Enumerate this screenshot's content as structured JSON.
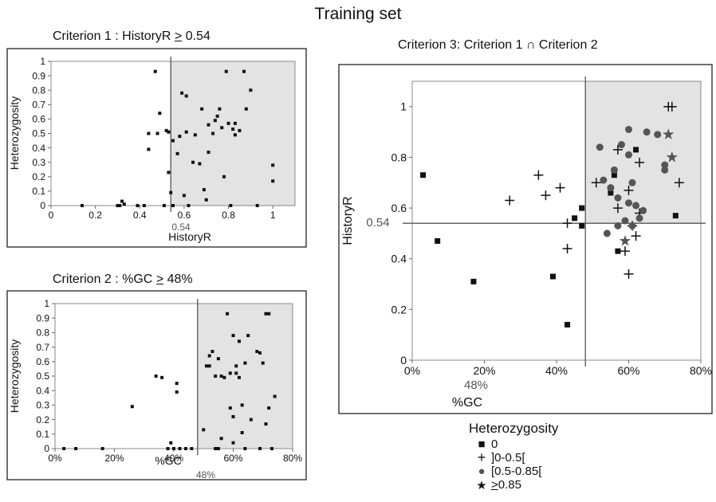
{
  "main_title": "Training set",
  "panel1": {
    "title_prefix": "Criterion 1 : HistoryR ",
    "title_op": ">",
    "title_suffix": " 0.54"
  },
  "panel2": {
    "title_prefix": "Criterion 2 : %GC ",
    "title_op": ">",
    "title_suffix": " 48%"
  },
  "panel3": {
    "title": "Criterion 3: Criterion 1 ∩ Criterion 2"
  },
  "legend": {
    "title": "Heterozygosity",
    "items": [
      {
        "symbol": "square",
        "label": "0"
      },
      {
        "symbol": "plus",
        "label": "]0-0.5["
      },
      {
        "symbol": "circle",
        "label": "[0.5-0.85["
      },
      {
        "symbol": "star",
        "label_op": ">",
        "label": " 0.85"
      }
    ]
  },
  "colors": {
    "shade": "#e3e3e3",
    "marker": "#111111",
    "circle": "#555555",
    "line": "#555555"
  },
  "chart_data": [
    {
      "type": "scatter",
      "title": "Criterion 1 : HistoryR > 0.54",
      "xlabel": "HistoryR",
      "ylabel": "Heterozygosity",
      "xlim": [
        0,
        1.1
      ],
      "ylim": [
        0,
        1
      ],
      "xticks": [
        0,
        0.2,
        0.4,
        0.6,
        0.8,
        1
      ],
      "xtick_labels": [
        "0",
        "0.2",
        "0.4",
        "0.6",
        "0.8",
        "1"
      ],
      "yticks": [
        0,
        0.1,
        0.2,
        0.3,
        0.4,
        0.5,
        0.6,
        0.7,
        0.8,
        0.9,
        1
      ],
      "ytick_labels": [
        "0",
        "0.1",
        "0.2",
        "0.3",
        "0.4",
        "0.5",
        "0.6",
        "0.7",
        "0.8",
        "0.9",
        "1"
      ],
      "threshold": {
        "axis": "x",
        "value": 0.54,
        "label": "0.54"
      },
      "shaded_region": "x >= 0.54",
      "grid": false,
      "points": [
        [
          0.14,
          0
        ],
        [
          0.3,
          0
        ],
        [
          0.31,
          0
        ],
        [
          0.32,
          0.03
        ],
        [
          0.33,
          0.01
        ],
        [
          0.39,
          0
        ],
        [
          0.42,
          0
        ],
        [
          0.44,
          0.5
        ],
        [
          0.44,
          0.39
        ],
        [
          0.47,
          0.93
        ],
        [
          0.48,
          0.5
        ],
        [
          0.49,
          0.64
        ],
        [
          0.51,
          0
        ],
        [
          0.52,
          0.52
        ],
        [
          0.53,
          0.51
        ],
        [
          0.53,
          0.23
        ],
        [
          0.54,
          0.09
        ],
        [
          0.55,
          0.45
        ],
        [
          0.55,
          0
        ],
        [
          0.57,
          0.36
        ],
        [
          0.58,
          0.48
        ],
        [
          0.59,
          0.78
        ],
        [
          0.6,
          0.07
        ],
        [
          0.61,
          0.76
        ],
        [
          0.61,
          0.51
        ],
        [
          0.62,
          0
        ],
        [
          0.64,
          0.3
        ],
        [
          0.65,
          0.49
        ],
        [
          0.67,
          0.29
        ],
        [
          0.68,
          0.67
        ],
        [
          0.69,
          0.11
        ],
        [
          0.7,
          0.04
        ],
        [
          0.71,
          0.56
        ],
        [
          0.71,
          0.37
        ],
        [
          0.73,
          0.5
        ],
        [
          0.74,
          0.59
        ],
        [
          0.75,
          0.62
        ],
        [
          0.76,
          0.67
        ],
        [
          0.77,
          0.54
        ],
        [
          0.78,
          0.2
        ],
        [
          0.79,
          0.93
        ],
        [
          0.8,
          0.57
        ],
        [
          0.81,
          0
        ],
        [
          0.82,
          0.53
        ],
        [
          0.83,
          0.57
        ],
        [
          0.83,
          0.49
        ],
        [
          0.85,
          0.52
        ],
        [
          0.87,
          0.93
        ],
        [
          0.88,
          0.67
        ],
        [
          0.9,
          0.8
        ],
        [
          0.93,
          0
        ],
        [
          1,
          0.28
        ],
        [
          1,
          0.17
        ]
      ]
    },
    {
      "type": "scatter",
      "title": "Criterion 2 : %GC > 48%",
      "xlabel": "%GC",
      "ylabel": "Heterozygosity",
      "xlim": [
        0,
        80
      ],
      "ylim": [
        0,
        1
      ],
      "xticks": [
        0,
        20,
        40,
        60,
        80
      ],
      "xtick_labels": [
        "0%",
        "20%",
        "40%",
        "60%",
        "80%"
      ],
      "yticks": [
        0,
        0.1,
        0.2,
        0.3,
        0.4,
        0.5,
        0.6,
        0.7,
        0.8,
        0.9,
        1
      ],
      "ytick_labels": [
        "0",
        "0.1",
        "0.2",
        "0.3",
        "0.4",
        "0.5",
        "0.6",
        "0.7",
        "0.8",
        "0.9",
        "1"
      ],
      "threshold": {
        "axis": "x",
        "value": 48,
        "label": "48%"
      },
      "shaded_region": "x >= 48",
      "grid": false,
      "points": [
        [
          3,
          0
        ],
        [
          7,
          0
        ],
        [
          16,
          0
        ],
        [
          26,
          0.29
        ],
        [
          34,
          0.5
        ],
        [
          36,
          0.49
        ],
        [
          38,
          0
        ],
        [
          39,
          0.04
        ],
        [
          40,
          0
        ],
        [
          41,
          0.45
        ],
        [
          41,
          0.39
        ],
        [
          42,
          0
        ],
        [
          44,
          0
        ],
        [
          46,
          0
        ],
        [
          50,
          0.13
        ],
        [
          51,
          0.57
        ],
        [
          52,
          0.64
        ],
        [
          52,
          0.57
        ],
        [
          53,
          0.67
        ],
        [
          54,
          0.5
        ],
        [
          54,
          0
        ],
        [
          55,
          0.62
        ],
        [
          55,
          0
        ],
        [
          56,
          0.5
        ],
        [
          56,
          0.07
        ],
        [
          57,
          0.49
        ],
        [
          58,
          0.93
        ],
        [
          59,
          0.28
        ],
        [
          59,
          0.52
        ],
        [
          60,
          0.78
        ],
        [
          60,
          0.22
        ],
        [
          60,
          0.04
        ],
        [
          61,
          0.57
        ],
        [
          61,
          0.52
        ],
        [
          62,
          0.74
        ],
        [
          62,
          0.49
        ],
        [
          63,
          0.3
        ],
        [
          63,
          0.11
        ],
        [
          64,
          0.59
        ],
        [
          64,
          0
        ],
        [
          65,
          0.78
        ],
        [
          66,
          0.2
        ],
        [
          68,
          0.67
        ],
        [
          69,
          0.66
        ],
        [
          69,
          0
        ],
        [
          70,
          0.59
        ],
        [
          71,
          0.17
        ],
        [
          71,
          0.93
        ],
        [
          72,
          0.93
        ],
        [
          72,
          0.28
        ],
        [
          73,
          0
        ],
        [
          74,
          0.36
        ]
      ]
    },
    {
      "type": "scatter",
      "title": "Criterion 3: Criterion 1 ∩ Criterion 2",
      "xlabel": "%GC",
      "ylabel": "HistoryR",
      "xlim": [
        0,
        80
      ],
      "ylim": [
        0,
        1.1
      ],
      "xticks": [
        0,
        20,
        40,
        60,
        80
      ],
      "xtick_labels": [
        "0%",
        "20%",
        "40%",
        "60%",
        "80%"
      ],
      "yticks": [
        0,
        0.2,
        0.4,
        0.6,
        0.8,
        1
      ],
      "ytick_labels": [
        "0",
        "0.2",
        "0.4",
        "0.6",
        "0.8",
        "1"
      ],
      "thresholds": [
        {
          "axis": "x",
          "value": 48,
          "label": "48%"
        },
        {
          "axis": "y",
          "value": 0.54,
          "label": "0.54"
        }
      ],
      "shaded_region": "x >= 48 and y >= 0.54",
      "grid": false,
      "series": [
        {
          "name": "0",
          "marker": "square",
          "points": [
            [
              3,
              0.73
            ],
            [
              7,
              0.47
            ],
            [
              17,
              0.31
            ],
            [
              39,
              0.33
            ],
            [
              43,
              0.14
            ],
            [
              45,
              0.56
            ],
            [
              47,
              0.53
            ],
            [
              47,
              0.6
            ],
            [
              55,
              0.66
            ],
            [
              56,
              0.73
            ],
            [
              57,
              0.43
            ],
            [
              62,
              0.83
            ],
            [
              73,
              0.57
            ]
          ]
        },
        {
          "name": "]0-0.5[",
          "marker": "plus",
          "points": [
            [
              27,
              0.63
            ],
            [
              35,
              0.73
            ],
            [
              37,
              0.65
            ],
            [
              41,
              0.68
            ],
            [
              43,
              0.44
            ],
            [
              43,
              0.54
            ],
            [
              51,
              0.7
            ],
            [
              57,
              0.6
            ],
            [
              57,
              0.83
            ],
            [
              59,
              0.43
            ],
            [
              60,
              0.67
            ],
            [
              60,
              0.34
            ],
            [
              61,
              0.53
            ],
            [
              62,
              0.49
            ],
            [
              63,
              0.58
            ],
            [
              63,
              0.78
            ],
            [
              71,
              1
            ],
            [
              72,
              1
            ],
            [
              74,
              0.7
            ]
          ]
        },
        {
          "name": "[0.5-0.85[",
          "marker": "circle",
          "points": [
            [
              52,
              0.84
            ],
            [
              53,
              0.71
            ],
            [
              54,
              0.5
            ],
            [
              55,
              0.68
            ],
            [
              56,
              0.75
            ],
            [
              57,
              0.53
            ],
            [
              57,
              0.64
            ],
            [
              58,
              0.85
            ],
            [
              59,
              0.55
            ],
            [
              60,
              0.91
            ],
            [
              60,
              0.62
            ],
            [
              60,
              0.81
            ],
            [
              61,
              0.7
            ],
            [
              61,
              0.53
            ],
            [
              62,
              0.61
            ],
            [
              63,
              0.56
            ],
            [
              64,
              0.59
            ],
            [
              65,
              0.9
            ],
            [
              68,
              0.89
            ],
            [
              70,
              0.77
            ],
            [
              70,
              0.75
            ]
          ]
        },
        {
          "name": "> 0.85",
          "marker": "star",
          "points": [
            [
              59,
              0.47
            ],
            [
              71,
              0.89
            ],
            [
              72,
              0.8
            ]
          ]
        }
      ]
    }
  ]
}
